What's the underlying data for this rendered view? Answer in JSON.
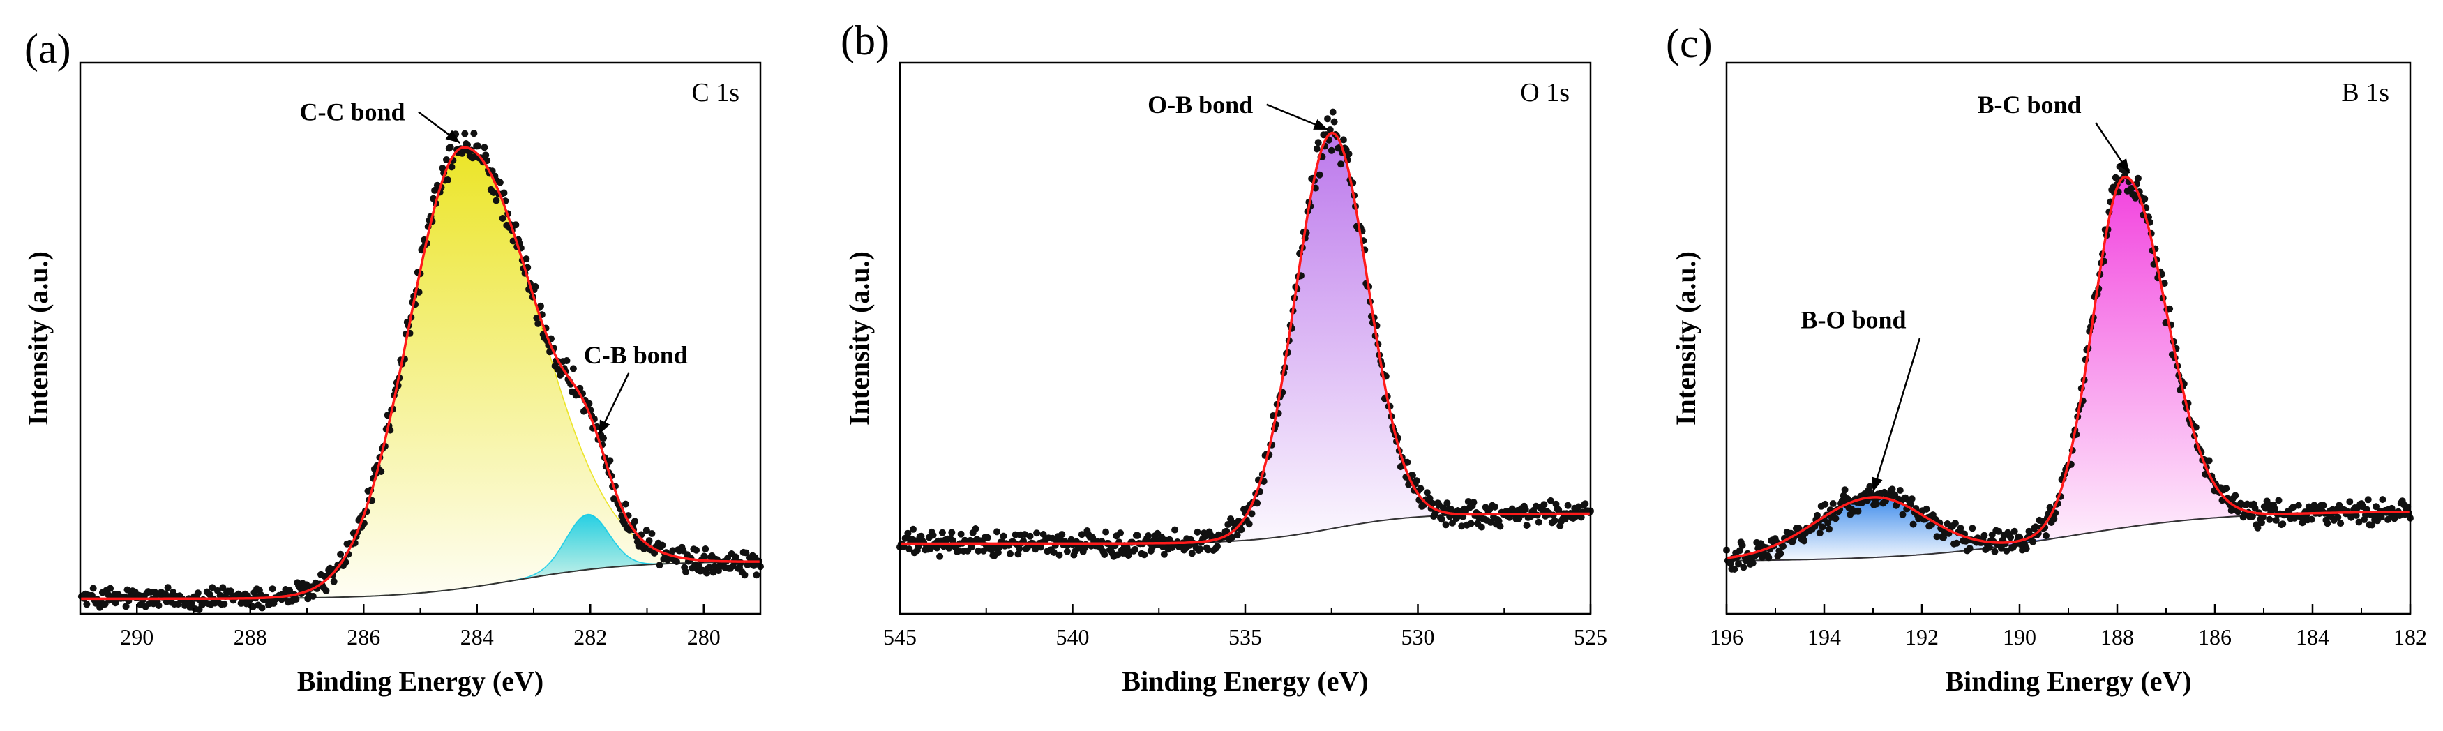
{
  "chart_data": [
    {
      "type": "line",
      "panel_label": "(a)",
      "region": "C 1s",
      "xlabel": "Binding Energy (eV)",
      "ylabel": "Intensity (a.u.)",
      "xlim": [
        291,
        279
      ],
      "ylim": [
        0,
        1.1
      ],
      "xticks": [
        290,
        288,
        286,
        284,
        282,
        280
      ],
      "xtick_labels": [
        "290",
        "288",
        "286",
        "284",
        "282",
        "280"
      ],
      "background": {
        "start": 0.105,
        "end": 0.03,
        "center": 283.3,
        "width": 1.0
      },
      "components": [
        {
          "name": "C-C bond",
          "center": 284.25,
          "amplitude": 0.88,
          "sigma_left": 1.3,
          "sigma_right": 0.95,
          "fill": "#e8e000"
        },
        {
          "name": "C-B bond",
          "center": 282.05,
          "amplitude": 0.11,
          "sigma_left": 0.38,
          "sigma_right": 0.38,
          "fill": "#00c8e8"
        }
      ],
      "annotations": [
        {
          "text": "C-C bond",
          "x": 284.3,
          "tx": 286.2,
          "ty": 0.985
        },
        {
          "text": "C-B bond",
          "x": 281.85,
          "tx": 281.2,
          "ty": 0.5
        }
      ]
    },
    {
      "type": "line",
      "panel_label": "(b)",
      "region": "O 1s",
      "xlabel": "Binding Energy (eV)",
      "ylabel": "Intensity (a.u.)",
      "xlim": [
        545,
        525
      ],
      "ylim": [
        0,
        1.1
      ],
      "xticks": [
        545,
        540,
        535,
        530,
        525
      ],
      "xtick_labels": [
        "545",
        "540",
        "535",
        "530",
        "525"
      ],
      "background": {
        "start": 0.2,
        "end": 0.14,
        "center": 532.5,
        "width": 1.2
      },
      "components": [
        {
          "name": "O-B bond",
          "center": 532.5,
          "amplitude": 0.79,
          "sigma_left": 1.05,
          "sigma_right": 1.05,
          "fill": "#b060e8"
        }
      ],
      "annotations": [
        {
          "text": "O-B bond",
          "x": 532.6,
          "tx": 536.3,
          "ty": 1.0
        }
      ]
    },
    {
      "type": "line",
      "panel_label": "(c)",
      "region": "B 1s",
      "xlabel": "Binding Energy (eV)",
      "ylabel": "Intensity (a.u.)",
      "xlim": [
        196,
        182
      ],
      "ylim": [
        0,
        1.1
      ],
      "xticks": [
        196,
        194,
        192,
        190,
        188,
        186,
        184,
        182
      ],
      "xtick_labels": [
        "196",
        "194",
        "192",
        "190",
        "188",
        "186",
        "184",
        "182"
      ],
      "background": {
        "start": 0.205,
        "end": 0.105,
        "center": 189.0,
        "width": 1.6
      },
      "components": [
        {
          "name": "B-O bond",
          "center": 193.0,
          "amplitude": 0.12,
          "sigma_left": 1.1,
          "sigma_right": 1.2,
          "fill": "#1e78e8"
        },
        {
          "name": "B-C bond",
          "center": 187.85,
          "amplitude": 0.7,
          "sigma_left": 0.85,
          "sigma_right": 0.65,
          "fill": "#f020d8"
        }
      ],
      "annotations": [
        {
          "text": "B-O bond",
          "x": 193.0,
          "tx": 193.4,
          "ty": 0.57
        },
        {
          "text": "B-C bond",
          "x": 187.75,
          "tx": 189.8,
          "ty": 1.0
        }
      ]
    }
  ]
}
